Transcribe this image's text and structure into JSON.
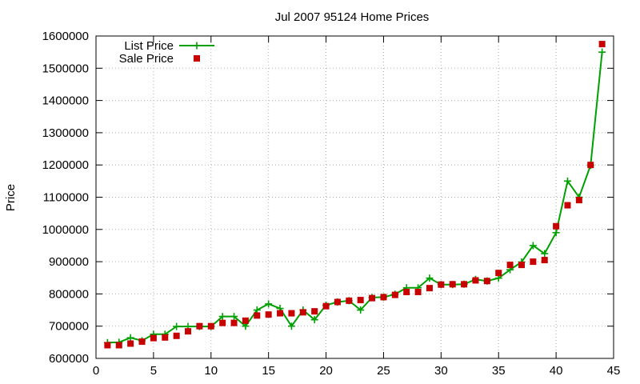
{
  "chart_data": {
    "type": "line",
    "title": "Jul 2007 95124 Home Prices",
    "xlabel": "",
    "ylabel": "Price",
    "xlim": [
      0,
      45
    ],
    "ylim": [
      600000,
      1600000
    ],
    "xticks": [
      0,
      5,
      10,
      15,
      20,
      25,
      30,
      35,
      40,
      45
    ],
    "yticks": [
      600000,
      700000,
      800000,
      900000,
      1000000,
      1100000,
      1200000,
      1300000,
      1400000,
      1500000,
      1600000
    ],
    "grid": true,
    "legend_position": "top-left",
    "series": [
      {
        "name": "List Price",
        "style": "line-plus",
        "color": "#00a000",
        "points": [
          [
            1,
            649000
          ],
          [
            2,
            650000
          ],
          [
            3,
            664000
          ],
          [
            4,
            655000
          ],
          [
            5,
            675000
          ],
          [
            6,
            675000
          ],
          [
            7,
            699000
          ],
          [
            8,
            699000
          ],
          [
            9,
            699000
          ],
          [
            10,
            699000
          ],
          [
            11,
            730000
          ],
          [
            12,
            730000
          ],
          [
            13,
            700000
          ],
          [
            14,
            750000
          ],
          [
            15,
            769000
          ],
          [
            16,
            755000
          ],
          [
            17,
            700000
          ],
          [
            18,
            750000
          ],
          [
            19,
            720000
          ],
          [
            20,
            765000
          ],
          [
            21,
            775000
          ],
          [
            22,
            779000
          ],
          [
            23,
            750000
          ],
          [
            24,
            789000
          ],
          [
            25,
            790000
          ],
          [
            26,
            799000
          ],
          [
            27,
            819000
          ],
          [
            28,
            819000
          ],
          [
            29,
            849000
          ],
          [
            30,
            829000
          ],
          [
            31,
            829000
          ],
          [
            32,
            830000
          ],
          [
            33,
            845000
          ],
          [
            34,
            840000
          ],
          [
            35,
            849000
          ],
          [
            36,
            875000
          ],
          [
            37,
            899000
          ],
          [
            38,
            950000
          ],
          [
            39,
            925000
          ],
          [
            40,
            990000
          ],
          [
            41,
            1150000
          ],
          [
            42,
            1100000
          ],
          [
            43,
            1199000
          ],
          [
            44,
            1550000
          ]
        ]
      },
      {
        "name": "Sale Price",
        "style": "square-points",
        "color": "#c80000",
        "points": [
          [
            1,
            641000
          ],
          [
            2,
            641000
          ],
          [
            3,
            646000
          ],
          [
            4,
            652000
          ],
          [
            5,
            663000
          ],
          [
            6,
            665000
          ],
          [
            7,
            670000
          ],
          [
            8,
            684000
          ],
          [
            9,
            700000
          ],
          [
            10,
            700000
          ],
          [
            11,
            710000
          ],
          [
            12,
            710000
          ],
          [
            13,
            717000
          ],
          [
            14,
            733000
          ],
          [
            15,
            736000
          ],
          [
            16,
            740000
          ],
          [
            17,
            740000
          ],
          [
            18,
            743000
          ],
          [
            19,
            746000
          ],
          [
            20,
            762000
          ],
          [
            21,
            775000
          ],
          [
            22,
            779000
          ],
          [
            23,
            781000
          ],
          [
            24,
            787000
          ],
          [
            25,
            790000
          ],
          [
            26,
            797000
          ],
          [
            27,
            806000
          ],
          [
            28,
            806000
          ],
          [
            29,
            818000
          ],
          [
            30,
            829000
          ],
          [
            31,
            830000
          ],
          [
            32,
            830000
          ],
          [
            33,
            842000
          ],
          [
            34,
            840000
          ],
          [
            35,
            865000
          ],
          [
            36,
            890000
          ],
          [
            37,
            890000
          ],
          [
            38,
            900000
          ],
          [
            39,
            905000
          ],
          [
            40,
            1010000
          ],
          [
            41,
            1075000
          ],
          [
            42,
            1091000
          ],
          [
            43,
            1200000
          ],
          [
            44,
            1575000
          ]
        ]
      }
    ]
  }
}
